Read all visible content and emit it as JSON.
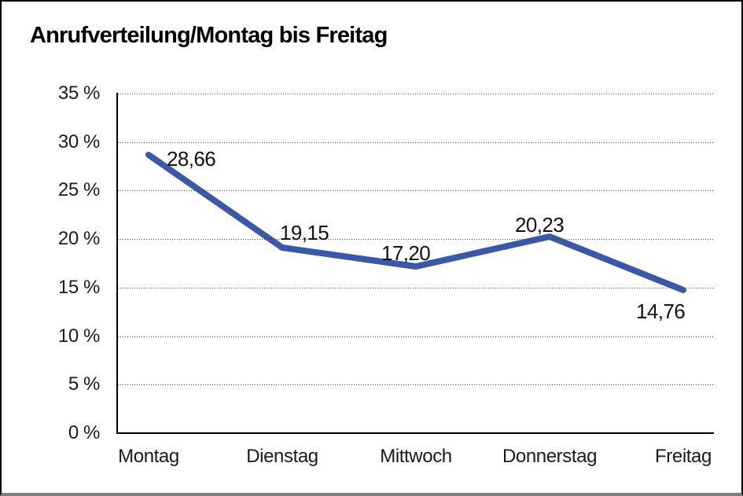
{
  "chart_data": {
    "type": "line",
    "title": "Anrufverteilung/Montag bis Freitag",
    "categories": [
      "Montag",
      "Dienstag",
      "Mittwoch",
      "Donnerstag",
      "Freitag"
    ],
    "values": [
      28.66,
      19.15,
      17.2,
      20.23,
      14.76
    ],
    "value_labels": [
      "28,66",
      "19,15",
      "17,20",
      "20,23",
      "14,76"
    ],
    "y_ticks_top_to_bottom": [
      "35 %",
      "30 %",
      "25 %",
      "20 %",
      "15 %",
      "10 %",
      "5 %",
      "0 %"
    ],
    "ylim": [
      0,
      35
    ],
    "ytick_step_percent": 5,
    "xlabel": "",
    "ylabel": "",
    "grid": "horizontal-dotted",
    "legend_position": "none",
    "line_color": "#3A57A8",
    "label_positions": [
      "above-right",
      "above",
      "above-left",
      "above-left",
      "below-left"
    ]
  },
  "frame": {
    "background": "#FFFFFF",
    "border_color": "#000000",
    "bottom_bar_color": "#7F7F7F"
  }
}
